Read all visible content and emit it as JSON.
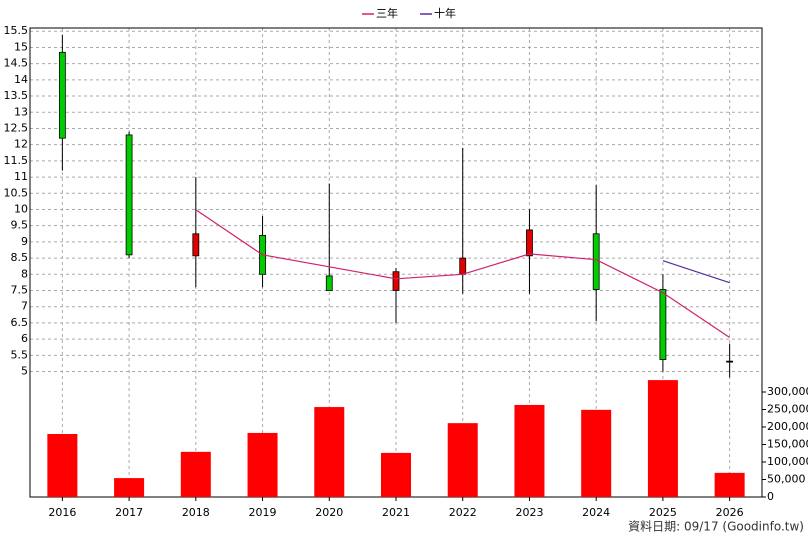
{
  "chart_data": [
    {
      "type": "candlestick",
      "categories": [
        "2016",
        "2017",
        "2018",
        "2019",
        "2020",
        "2021",
        "2022",
        "2023",
        "2024",
        "2025",
        "2026"
      ],
      "open": [
        14.85,
        12.3,
        8.57,
        9.2,
        7.95,
        7.5,
        8.0,
        8.57,
        9.25,
        7.53,
        5.32
      ],
      "high": [
        15.38,
        12.4,
        11.0,
        9.8,
        10.8,
        8.2,
        11.9,
        10.0,
        10.75,
        8.0,
        5.86
      ],
      "low": [
        11.2,
        8.5,
        7.6,
        7.6,
        7.5,
        6.5,
        7.4,
        7.4,
        6.55,
        5.0,
        4.82
      ],
      "close": [
        12.2,
        8.6,
        9.25,
        8.0,
        7.5,
        8.08,
        8.5,
        9.37,
        7.53,
        5.37,
        5.32
      ],
      "up_color": "#e00000",
      "down_color": "#00cc00",
      "series": [
        {
          "name": "三年",
          "color": "#d0206e",
          "values": [
            null,
            null,
            9.99,
            8.6,
            8.23,
            7.86,
            8.0,
            8.63,
            8.45,
            7.43,
            6.05
          ]
        },
        {
          "name": "十年",
          "color": "#5a2ca0",
          "values": [
            null,
            null,
            null,
            null,
            null,
            null,
            null,
            null,
            null,
            8.42,
            7.74
          ]
        }
      ],
      "ylim": [
        4.8,
        15.6
      ],
      "yticks": [
        5,
        5.5,
        6,
        6.5,
        7,
        7.5,
        8,
        8.5,
        9,
        9.5,
        10,
        10.5,
        11,
        11.5,
        12,
        12.5,
        13,
        13.5,
        14,
        14.5,
        15,
        15.5
      ],
      "grid": true
    },
    {
      "type": "bar",
      "values": [
        180000,
        54000,
        129000,
        183000,
        257000,
        126000,
        211000,
        263000,
        249000,
        334000,
        69000
      ],
      "color": "#ff0000",
      "ylim": [
        0,
        340000
      ],
      "yticks": [
        0,
        {
          "value": 50000,
          "label": "50,000"
        },
        {
          "value": 100000,
          "label": "100,000"
        },
        {
          "value": 150000,
          "label": "150,000"
        },
        {
          "value": 200000,
          "label": "200,000"
        },
        {
          "value": 250000,
          "label": "250,000"
        },
        {
          "value": 300000,
          "label": "300,000"
        }
      ]
    }
  ],
  "footer": "資料日期: 09/17  (Goodinfo.tw)"
}
